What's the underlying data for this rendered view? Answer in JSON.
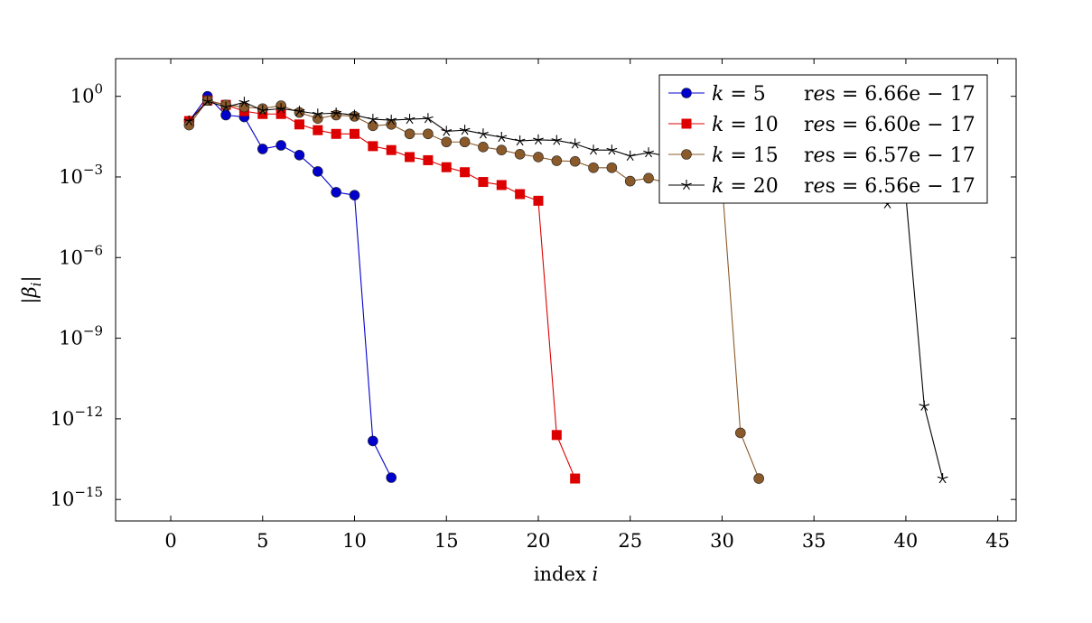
{
  "chart_data": {
    "type": "line",
    "xlabel": "index i",
    "ylabel": "|β_i|",
    "xlim": [
      -3,
      46
    ],
    "ylim": [
      -15.8,
      1.4
    ],
    "y_scale": "log",
    "grid": false,
    "legend_position": "top-right",
    "x_ticks": [
      0,
      5,
      10,
      15,
      20,
      25,
      30,
      35,
      40,
      45
    ],
    "y_tick_exponents": [
      0,
      -3,
      -6,
      -9,
      -12,
      -15
    ],
    "y_tick_labels": [
      "10^0",
      "10^-3",
      "10^-6",
      "10^-9",
      "10^-12",
      "10^-15"
    ],
    "series": [
      {
        "name": "k = 5    res = 6.66e − 17",
        "legend_label": "k = 5",
        "legend_res": "res = 6.66e − 17",
        "color": "#0000cc",
        "marker": "circle",
        "x": [
          1,
          2,
          3,
          4,
          5,
          6,
          7,
          8,
          9,
          10,
          11,
          12
        ],
        "y": [
          0.12,
          1.0,
          0.2,
          0.17,
          0.011,
          0.015,
          0.0065,
          0.0016,
          0.00027,
          0.00021,
          1.5e-13,
          6.5e-15
        ]
      },
      {
        "name": "k = 10    res = 6.60e − 17",
        "legend_label": "k = 10",
        "legend_res": "res = 6.60e − 17",
        "color": "#dd0000",
        "marker": "square",
        "x": [
          1,
          2,
          3,
          4,
          5,
          6,
          7,
          8,
          9,
          10,
          11,
          12,
          13,
          14,
          15,
          16,
          17,
          18,
          19,
          20,
          21,
          22
        ],
        "y": [
          0.12,
          0.7,
          0.48,
          0.28,
          0.22,
          0.22,
          0.09,
          0.055,
          0.04,
          0.04,
          0.014,
          0.01,
          0.0055,
          0.0042,
          0.0023,
          0.0015,
          0.00065,
          0.0005,
          0.00023,
          0.00013,
          2.5e-13,
          6e-15
        ]
      },
      {
        "name": "k = 15    res = 6.57e − 17",
        "legend_label": "k = 15",
        "legend_res": "res = 6.57e − 17",
        "color": "#8B5A2B",
        "marker": "circle",
        "x": [
          1,
          2,
          3,
          4,
          5,
          6,
          7,
          8,
          9,
          10,
          11,
          12,
          13,
          14,
          15,
          16,
          17,
          18,
          19,
          20,
          21,
          22,
          23,
          24,
          25,
          26,
          27,
          28,
          29,
          30,
          31,
          32
        ],
        "y": [
          0.085,
          0.7,
          0.48,
          0.4,
          0.35,
          0.45,
          0.25,
          0.15,
          0.2,
          0.18,
          0.08,
          0.09,
          0.04,
          0.04,
          0.02,
          0.02,
          0.013,
          0.01,
          0.007,
          0.0055,
          0.004,
          0.0038,
          0.0022,
          0.0022,
          0.0007,
          0.0009,
          0.0006,
          0.00035,
          0.00022,
          0.0006,
          3e-13,
          6e-15
        ]
      },
      {
        "name": "k = 20    res = 6.56e − 17",
        "legend_label": "k = 20",
        "legend_res": "res = 6.56e − 17",
        "color": "#000000",
        "marker": "star",
        "x": [
          1,
          2,
          3,
          4,
          5,
          6,
          7,
          8,
          9,
          10,
          11,
          12,
          13,
          14,
          15,
          16,
          17,
          18,
          19,
          20,
          21,
          22,
          23,
          24,
          25,
          26,
          27,
          28,
          29,
          30,
          31,
          32,
          33,
          34,
          35,
          36,
          37,
          38,
          39,
          40,
          41,
          42
        ],
        "y": [
          0.12,
          0.65,
          0.4,
          0.6,
          0.3,
          0.35,
          0.28,
          0.22,
          0.24,
          0.2,
          0.14,
          0.13,
          0.14,
          0.15,
          0.05,
          0.055,
          0.04,
          0.03,
          0.022,
          0.024,
          0.023,
          0.017,
          0.01,
          0.01,
          0.006,
          0.008,
          0.006,
          0.005,
          0.0045,
          0.0042,
          0.002,
          0.0015,
          0.0012,
          0.001,
          0.0008,
          0.0006,
          0.00025,
          0.00025,
          0.0001,
          0.0002,
          3e-12,
          6e-15
        ]
      }
    ]
  }
}
